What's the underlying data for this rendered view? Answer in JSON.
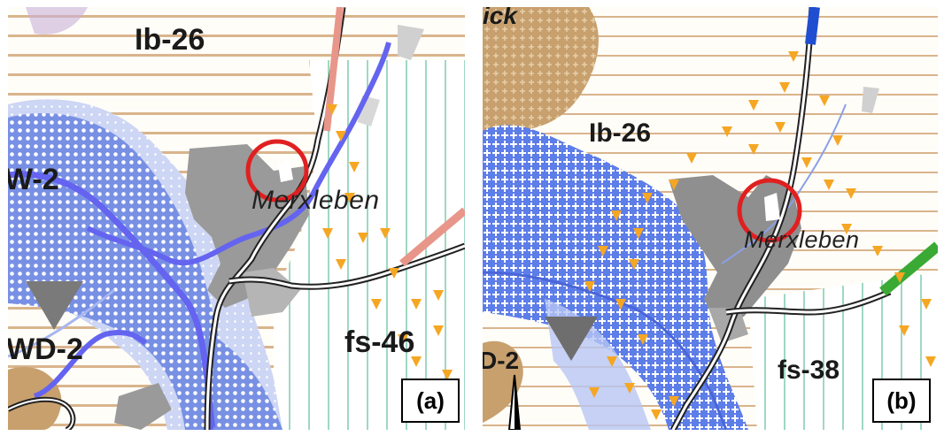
{
  "figure": {
    "panels": [
      {
        "id": "a",
        "tag": "(a)",
        "labels": {
          "zone_top": "Ib-26",
          "zone_left": "W-2",
          "zone_left_bottom": "WD-2",
          "zone_right": "fs-46",
          "town": "Merxleben"
        }
      },
      {
        "id": "b",
        "tag": "(b)",
        "labels": {
          "corner_top": "ick",
          "zone_top": "Ib-26",
          "zone_left_bottom": "D-2",
          "zone_right": "fs-38",
          "town": "Merxleben"
        }
      }
    ]
  },
  "colors": {
    "hatch_horizontal": "#d9b48c",
    "hatch_vertical": "#8fd1b8",
    "water": "#6f8ae6",
    "water_dots": "#ffffff",
    "river": "#6464f0",
    "settlement": "#9a9a9a",
    "brown_area": "#c8a06e",
    "orange_marker": "#f5a623",
    "highlight_circle": "#e02020",
    "road_a": "#e8968a",
    "road_b": "#3aaa35",
    "road_b_top": "#1f4fd0"
  }
}
